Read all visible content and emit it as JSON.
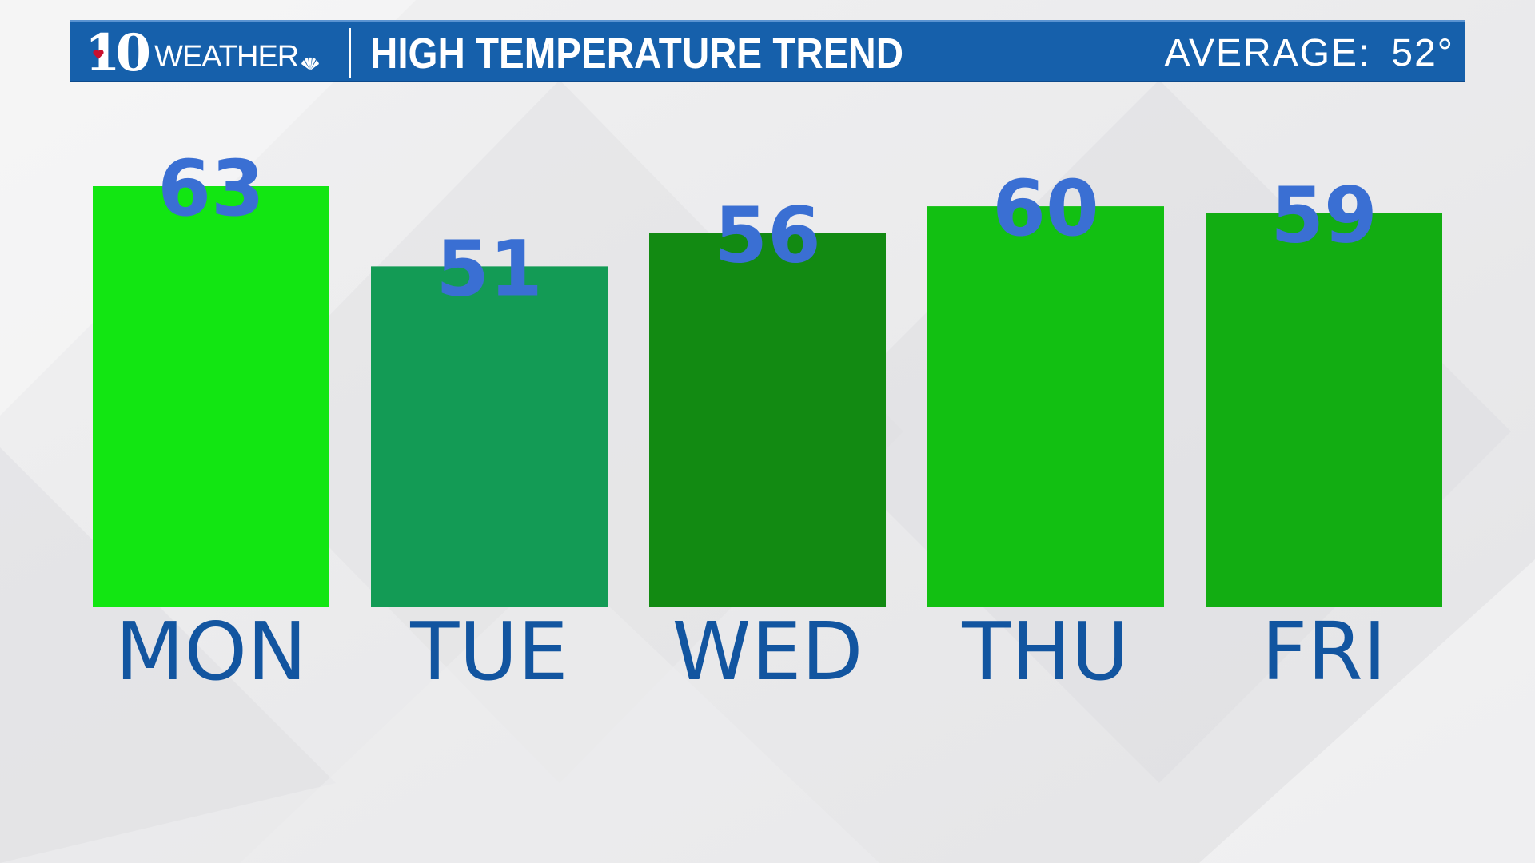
{
  "header": {
    "logo_number": "10",
    "logo_word": "WEATHER",
    "title": "HIGH TEMPERATURE TREND",
    "average_label": "AVERAGE:",
    "average_value": "52°"
  },
  "colors": {
    "header_bg": "#1660ab",
    "value_text": "#3a6fd3",
    "day_text": "#1255a0",
    "heart": "#c8102e"
  },
  "chart_data": {
    "type": "bar",
    "title": "HIGH TEMPERATURE TREND",
    "categories": [
      "MON",
      "TUE",
      "WED",
      "THU",
      "FRI"
    ],
    "values": [
      63,
      51,
      56,
      60,
      59
    ],
    "bar_colors": [
      "#12e612",
      "#139b55",
      "#128a12",
      "#12c012",
      "#12ad12"
    ],
    "ylim": [
      0,
      63
    ],
    "grid": false,
    "legend": "none",
    "data_labels": true
  }
}
